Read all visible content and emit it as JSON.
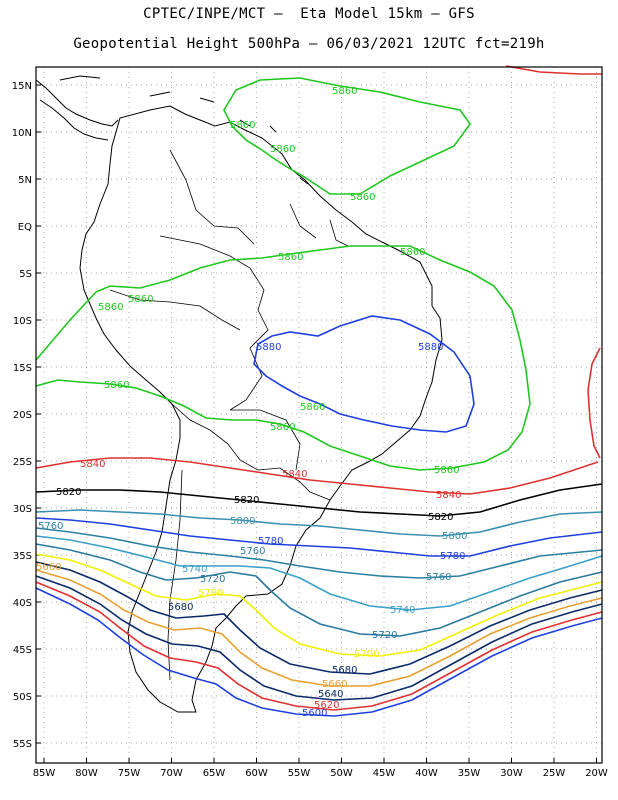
{
  "title_line1": "CPTEC/INPE/MCT –  Eta Model 15km – GFS",
  "title_line2": "Geopotential Height 500hPa – 06/03/2021 12UTC fct=219h",
  "lat_ticks": [
    "15N",
    "10N",
    "5N",
    "EQ",
    "5S",
    "10S",
    "15S",
    "20S",
    "25S",
    "30S",
    "35S",
    "40S",
    "45S",
    "50S",
    "55S"
  ],
  "lon_ticks": [
    "85W",
    "80W",
    "75W",
    "70W",
    "65W",
    "60W",
    "55W",
    "50W",
    "45W",
    "40W",
    "35W",
    "30W",
    "25W",
    "20W"
  ],
  "colors": {
    "5880": "#1f3fe0",
    "5860": "#1ec81e",
    "5840": "#e03030",
    "5820": "#000000",
    "5800": "#3a8fb0",
    "5780": "#1f3fe0",
    "5760": "#2a80a0",
    "5740": "#3a9fc8",
    "5720": "#2a78a0",
    "5700": "#f0f000",
    "5680": "#0a2a6a",
    "5660": "#e8a030",
    "5640": "#0a2a6a",
    "5620": "#e03030",
    "5600": "#1f3fe0",
    "grid": "#888888",
    "coast": "#000000"
  },
  "contour_labels": [
    {
      "text": "5860",
      "color_key": "5860"
    },
    {
      "text": "5860",
      "color_key": "5860"
    },
    {
      "text": "5860",
      "color_key": "5860"
    },
    {
      "text": "5860",
      "color_key": "5860"
    },
    {
      "text": "5860",
      "color_key": "5860"
    },
    {
      "text": "5860",
      "color_key": "5860"
    },
    {
      "text": "5860",
      "color_key": "5860"
    },
    {
      "text": "5860",
      "color_key": "5860"
    },
    {
      "text": "5860",
      "color_key": "5860"
    },
    {
      "text": "5860",
      "color_key": "5860"
    },
    {
      "text": "5860",
      "color_key": "5860"
    },
    {
      "text": "5860",
      "color_key": "5860"
    },
    {
      "text": "5880",
      "color_key": "5880"
    },
    {
      "text": "5880",
      "color_key": "5880"
    },
    {
      "text": "5840",
      "color_key": "5840"
    },
    {
      "text": "5840",
      "color_key": "5840"
    },
    {
      "text": "5840",
      "color_key": "5840"
    },
    {
      "text": "5820",
      "color_key": "5820"
    },
    {
      "text": "5820",
      "color_key": "5820"
    },
    {
      "text": "5820",
      "color_key": "5820"
    },
    {
      "text": "5800",
      "color_key": "5800"
    },
    {
      "text": "5800",
      "color_key": "5800"
    },
    {
      "text": "5780",
      "color_key": "5780"
    },
    {
      "text": "5780",
      "color_key": "5780"
    },
    {
      "text": "5760",
      "color_key": "5760"
    },
    {
      "text": "5760",
      "color_key": "5760"
    },
    {
      "text": "5760",
      "color_key": "5760"
    },
    {
      "text": "5740",
      "color_key": "5740"
    },
    {
      "text": "5740",
      "color_key": "5740"
    },
    {
      "text": "5720",
      "color_key": "5720"
    },
    {
      "text": "5720",
      "color_key": "5720"
    },
    {
      "text": "5700",
      "color_key": "5700"
    },
    {
      "text": "5700",
      "color_key": "5700"
    },
    {
      "text": "5680",
      "color_key": "5680"
    },
    {
      "text": "5680",
      "color_key": "5680"
    },
    {
      "text": "5660",
      "color_key": "5660"
    },
    {
      "text": "5660",
      "color_key": "5660"
    },
    {
      "text": "5640",
      "color_key": "5640"
    },
    {
      "text": "5620",
      "color_key": "5620"
    },
    {
      "text": "5600",
      "color_key": "5600"
    }
  ]
}
